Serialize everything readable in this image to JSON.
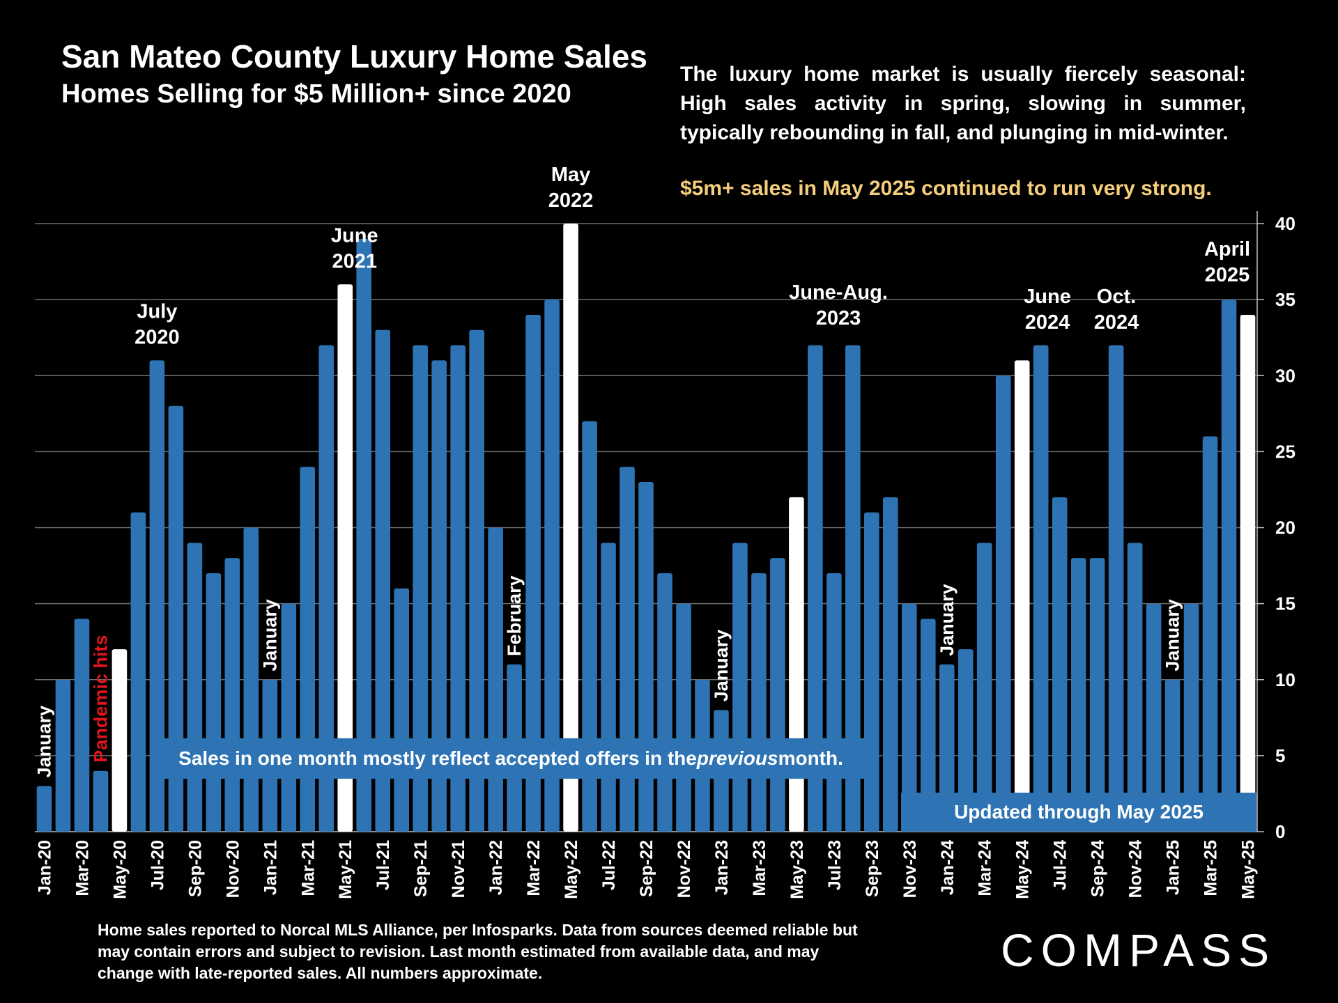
{
  "header": {
    "title": "San Mateo County Luxury Home Sales",
    "subtitle": "Homes Selling for $5 Million+ since 2020"
  },
  "description": "The luxury home market is usually fiercely seasonal: High sales activity in spring, slowing in summer, typically rebounding in fall, and plunging in mid-winter.",
  "highlight": "$5m+ sales in May 2025 continued to run very strong.",
  "note_box": {
    "before": "Sales in one month mostly reflect accepted offers in the ",
    "emphasis": "previous",
    "after": " month."
  },
  "updated_box": "Updated through May 2025",
  "footnote": "Home sales reported to Norcal MLS Alliance, per Infosparks. Data from sources deemed reliable but may contain errors and subject to revision.  Last month estimated from available data, and may change with late-reported sales. All numbers approximate.",
  "logo": "COMPASS",
  "colors": {
    "bar": "#2e74b5",
    "highlight_bar": "#ffffff",
    "accent_text": "#f6cf7c",
    "pandemic_text": "#e0141e",
    "background": "#000000"
  },
  "chart_data": {
    "type": "bar",
    "categories": [
      "Jan-20",
      "Feb-20",
      "Mar-20",
      "Apr-20",
      "May-20",
      "Jun-20",
      "Jul-20",
      "Aug-20",
      "Sep-20",
      "Oct-20",
      "Nov-20",
      "Dec-20",
      "Jan-21",
      "Feb-21",
      "Mar-21",
      "Apr-21",
      "May-21",
      "Jun-21",
      "Jul-21",
      "Aug-21",
      "Sep-21",
      "Oct-21",
      "Nov-21",
      "Dec-21",
      "Jan-22",
      "Feb-22",
      "Mar-22",
      "Apr-22",
      "May-22",
      "Jun-22",
      "Jul-22",
      "Aug-22",
      "Sep-22",
      "Oct-22",
      "Nov-22",
      "Dec-22",
      "Jan-23",
      "Feb-23",
      "Mar-23",
      "Apr-23",
      "May-23",
      "Jun-23",
      "Jul-23",
      "Aug-23",
      "Sep-23",
      "Oct-23",
      "Nov-23",
      "Dec-23",
      "Jan-24",
      "Feb-24",
      "Mar-24",
      "Apr-24",
      "May-24",
      "Jun-24",
      "Jul-24",
      "Aug-24",
      "Sep-24",
      "Oct-24",
      "Nov-24",
      "Dec-24",
      "Jan-25",
      "Feb-25",
      "Mar-25",
      "Apr-25",
      "May-25"
    ],
    "x_tick_labels": [
      "Jan-20",
      "Mar-20",
      "May-20",
      "Jul-20",
      "Sep-20",
      "Nov-20",
      "Jan-21",
      "Mar-21",
      "May-21",
      "Jul-21",
      "Sep-21",
      "Nov-21",
      "Jan-22",
      "Mar-22",
      "May-22",
      "Jul-22",
      "Sep-22",
      "Nov-22",
      "Jan-23",
      "Mar-23",
      "May-23",
      "Jul-23",
      "Sep-23",
      "Nov-23",
      "Jan-24",
      "Mar-24",
      "May-24",
      "Jul-24",
      "Sep-24",
      "Nov-24",
      "Jan-25",
      "Mar-25",
      "May-25"
    ],
    "values": [
      3,
      10,
      14,
      4,
      12,
      21,
      31,
      28,
      19,
      17,
      18,
      20,
      10,
      15,
      24,
      32,
      36,
      39,
      33,
      16,
      32,
      31,
      32,
      33,
      20,
      11,
      34,
      35,
      40,
      27,
      19,
      24,
      23,
      17,
      15,
      10,
      8,
      19,
      17,
      18,
      22,
      32,
      17,
      32,
      21,
      22,
      15,
      14,
      11,
      12,
      19,
      30,
      31,
      32,
      22,
      18,
      18,
      32,
      19,
      15,
      10,
      15,
      26,
      35,
      34
    ],
    "highlight_categories": [
      "May-20",
      "May-21",
      "May-22",
      "May-23",
      "May-24",
      "May-25"
    ],
    "ylim": [
      0,
      40
    ],
    "y_ticks": [
      0,
      5,
      10,
      15,
      20,
      25,
      30,
      35,
      40
    ],
    "y_axis_side": "right",
    "grid": true,
    "annotations": [
      {
        "category": "Jan-20",
        "text": "January",
        "rotated": true
      },
      {
        "category": "Apr-20",
        "text": "Pandemic hits",
        "rotated": true,
        "color": "#e0141e"
      },
      {
        "category": "Jul-20",
        "lines": [
          "July",
          "2020"
        ]
      },
      {
        "category": "Jan-21",
        "text": "January",
        "rotated": true
      },
      {
        "category": "May-21",
        "lines": [
          "June",
          "2021"
        ]
      },
      {
        "category": "Feb-22",
        "text": "February",
        "rotated": true
      },
      {
        "category": "May-22",
        "lines": [
          "May",
          "2022"
        ]
      },
      {
        "category": "Jan-23",
        "text": "January",
        "rotated": true
      },
      {
        "category": "Jul-23",
        "lines": [
          "June-Aug.",
          "2023"
        ]
      },
      {
        "category": "Jan-24",
        "text": "January",
        "rotated": true
      },
      {
        "category": "Jun-24",
        "lines": [
          "June",
          "2024"
        ]
      },
      {
        "category": "Oct-24",
        "lines": [
          "Oct.",
          "2024"
        ]
      },
      {
        "category": "Jan-25",
        "text": "January",
        "rotated": true
      },
      {
        "category": "Apr-25",
        "lines": [
          "April",
          "2025"
        ]
      }
    ]
  }
}
